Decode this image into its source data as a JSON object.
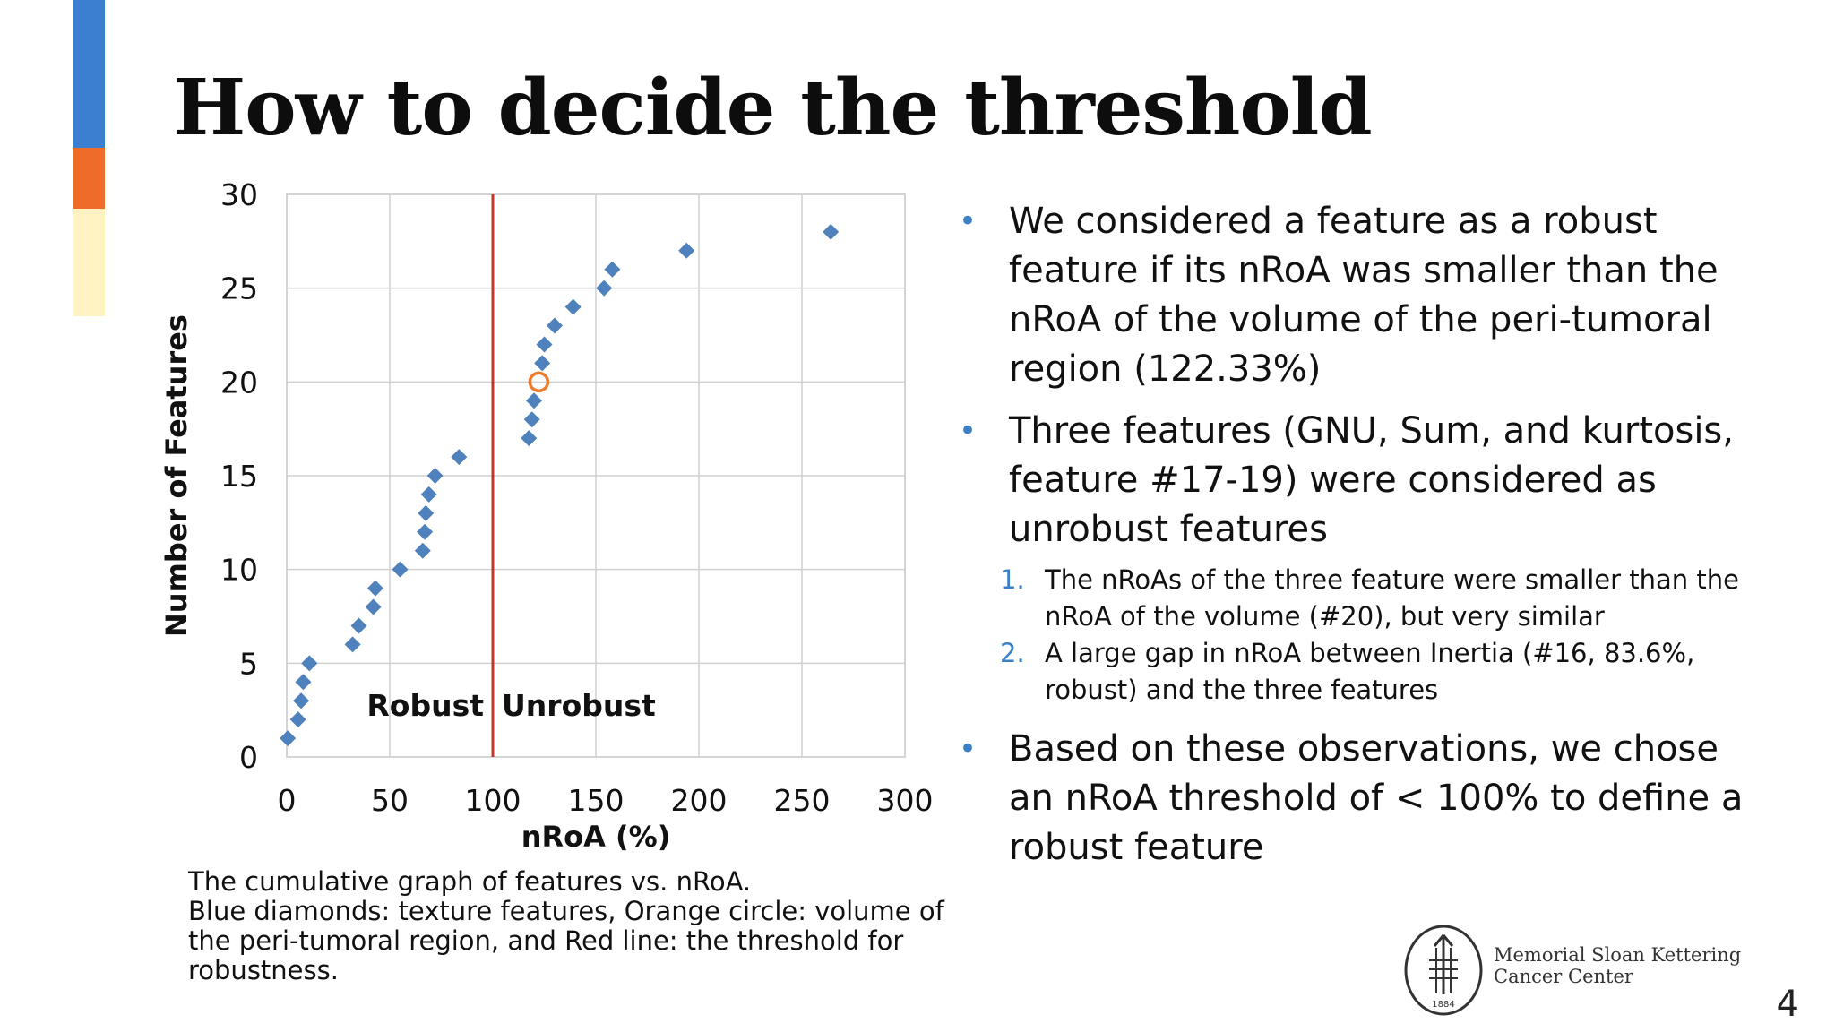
{
  "slide": {
    "title": "How to decide the threshold",
    "page_number": "4",
    "accent_colors": [
      "#3a7fd0",
      "#ef6b2a",
      "#fff3c4"
    ]
  },
  "caption": {
    "lines": [
      "The cumulative graph of features vs. nRoA.",
      "Blue diamonds: texture features, Orange circle: volume of",
      "the peri-tumoral region, and Red line: the threshold for",
      "robustness."
    ]
  },
  "bullets": [
    {
      "text": "We considered a feature as a robust feature if its nRoA was smaller than the nRoA of the volume of the peri-tumoral region (122.33%)",
      "subitems": []
    },
    {
      "text": "Three features (GNU, Sum, and kurtosis, feature #17-19) were considered as unrobust features",
      "subitems": [
        {
          "num": "1.",
          "text": "The nRoAs of the three feature were smaller than the nRoA of the volume (#20), but very similar"
        },
        {
          "num": "2.",
          "text": "A large gap in nRoA between Inertia (#16, 83.6%, robust) and the three features"
        }
      ]
    },
    {
      "text": "Based on these observations, we chose an nRoA threshold of < 100% to define a robust feature",
      "subitems": []
    }
  ],
  "logo": {
    "line1": "Memorial Sloan Kettering",
    "line2": "Cancer Center",
    "year": "1884"
  },
  "chart_data": {
    "type": "scatter",
    "xlabel": "nRoA (%)",
    "ylabel": "Number of Features",
    "xlim": [
      0,
      300
    ],
    "ylim": [
      0,
      30
    ],
    "xticks": [
      0,
      50,
      100,
      150,
      200,
      250,
      300
    ],
    "yticks": [
      0,
      5,
      10,
      15,
      20,
      25,
      30
    ],
    "grid": true,
    "series": [
      {
        "marker": "diamond",
        "color": "#4f81bd",
        "points": [
          {
            "x": 0.5,
            "y": 1
          },
          {
            "x": 5.5,
            "y": 2
          },
          {
            "x": 7,
            "y": 3
          },
          {
            "x": 8,
            "y": 4
          },
          {
            "x": 11,
            "y": 5
          },
          {
            "x": 32,
            "y": 6
          },
          {
            "x": 35,
            "y": 7
          },
          {
            "x": 42,
            "y": 8
          },
          {
            "x": 43,
            "y": 9
          },
          {
            "x": 55,
            "y": 10
          },
          {
            "x": 66,
            "y": 11
          },
          {
            "x": 67,
            "y": 12
          },
          {
            "x": 67.5,
            "y": 13
          },
          {
            "x": 69,
            "y": 14
          },
          {
            "x": 72,
            "y": 15
          },
          {
            "x": 83.6,
            "y": 16
          },
          {
            "x": 117.5,
            "y": 17
          },
          {
            "x": 119,
            "y": 18
          },
          {
            "x": 120,
            "y": 19
          },
          {
            "x": 124,
            "y": 21
          },
          {
            "x": 125,
            "y": 22
          },
          {
            "x": 130,
            "y": 23
          },
          {
            "x": 139,
            "y": 24
          },
          {
            "x": 154,
            "y": 25
          },
          {
            "x": 158,
            "y": 26
          },
          {
            "x": 194,
            "y": 27
          },
          {
            "x": 264,
            "y": 28
          }
        ]
      },
      {
        "marker": "circle",
        "color": "#ed7d31",
        "points": [
          {
            "x": 122.33,
            "y": 20
          }
        ]
      }
    ],
    "threshold": {
      "x": 100,
      "color": "#c0392b"
    },
    "annotations": [
      {
        "text": "Robust",
        "side": "left"
      },
      {
        "text": "Unrobust",
        "side": "right"
      }
    ]
  }
}
